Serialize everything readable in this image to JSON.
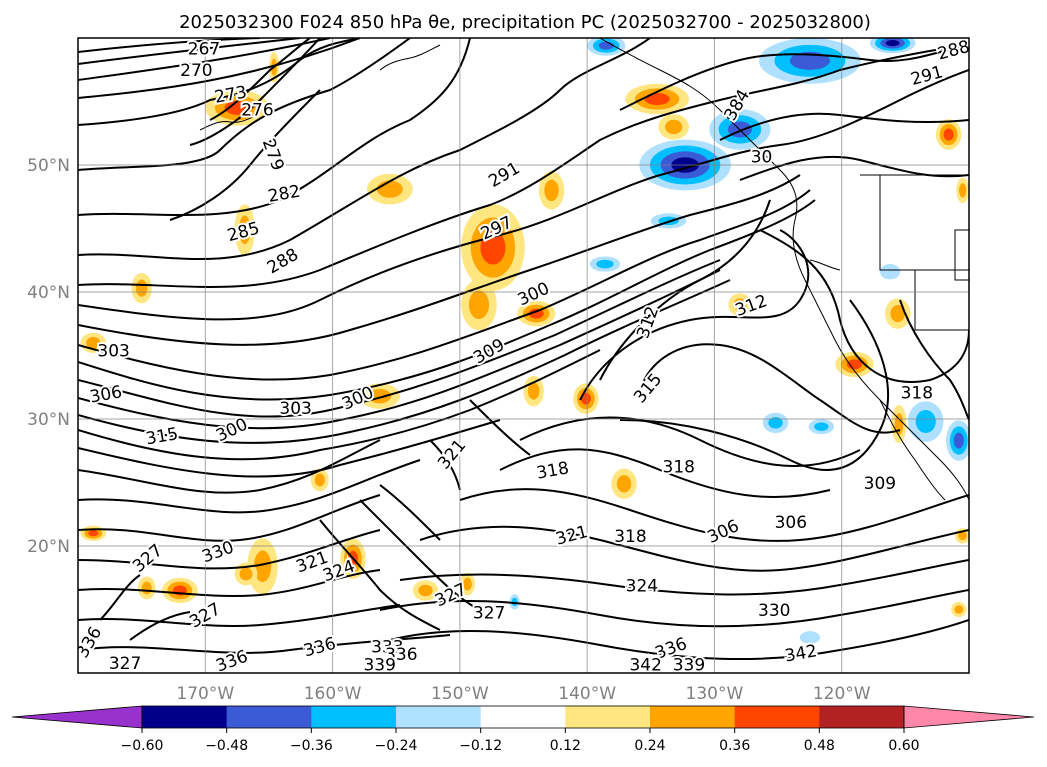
{
  "title": "2025032300 F024 850 hPa θe, precipitation PC (2025032700 - 2025032800)",
  "chart_data": {
    "type": "contour-map",
    "title": "2025032300 F024 850 hPa θe, precipitation PC (2025032700 - 2025032800)",
    "projection": "plate-carree",
    "lon_range": [
      -180,
      -110
    ],
    "lat_range": [
      10,
      60
    ],
    "gridlines": true,
    "lat_ticks": [
      {
        "value": 20,
        "label": "20°N"
      },
      {
        "value": 30,
        "label": "30°N"
      },
      {
        "value": 40,
        "label": "40°N"
      },
      {
        "value": 50,
        "label": "50°N"
      }
    ],
    "lon_ticks": [
      {
        "value": -170,
        "label": "170°W"
      },
      {
        "value": -160,
        "label": "160°W"
      },
      {
        "value": -150,
        "label": "150°W"
      },
      {
        "value": -140,
        "label": "140°W"
      },
      {
        "value": -130,
        "label": "130°W"
      },
      {
        "value": -120,
        "label": "120°W"
      }
    ],
    "contour_labels": [
      {
        "text": "267",
        "lon": -170.1,
        "lat": 59.1,
        "rot": 0
      },
      {
        "text": "270",
        "lon": -170.7,
        "lat": 57.4,
        "rot": 0
      },
      {
        "text": "273",
        "lon": -168.0,
        "lat": 55.5,
        "rot": -10
      },
      {
        "text": "276",
        "lon": -165.9,
        "lat": 54.3,
        "rot": 0
      },
      {
        "text": "279",
        "lon": -164.7,
        "lat": 50.8,
        "rot": 70
      },
      {
        "text": "282",
        "lon": -163.8,
        "lat": 47.7,
        "rot": -10
      },
      {
        "text": "285",
        "lon": -167.0,
        "lat": 44.7,
        "rot": -15
      },
      {
        "text": "288",
        "lon": -163.9,
        "lat": 42.4,
        "rot": -30
      },
      {
        "text": "291",
        "lon": -146.5,
        "lat": 49.2,
        "rot": -30
      },
      {
        "text": "297",
        "lon": -147.1,
        "lat": 45.0,
        "rot": -25
      },
      {
        "text": "300",
        "lon": -144.2,
        "lat": 39.8,
        "rot": -25
      },
      {
        "text": "309",
        "lon": -147.7,
        "lat": 35.3,
        "rot": -30
      },
      {
        "text": "312",
        "lon": -135.2,
        "lat": 37.6,
        "rot": -70
      },
      {
        "text": "315",
        "lon": -135.2,
        "lat": 32.4,
        "rot": -50
      },
      {
        "text": "312",
        "lon": -127.1,
        "lat": 38.9,
        "rot": -20
      },
      {
        "text": "288",
        "lon": -111.2,
        "lat": 59.0,
        "rot": -15
      },
      {
        "text": "291",
        "lon": -113.3,
        "lat": 57.0,
        "rot": -15
      },
      {
        "text": "303",
        "lon": -177.2,
        "lat": 35.3,
        "rot": 0
      },
      {
        "text": "306",
        "lon": -177.8,
        "lat": 31.9,
        "rot": -10
      },
      {
        "text": "303",
        "lon": -162.9,
        "lat": 30.8,
        "rot": 0
      },
      {
        "text": "300",
        "lon": -158.0,
        "lat": 31.6,
        "rot": -25
      },
      {
        "text": "300",
        "lon": -167.9,
        "lat": 29.1,
        "rot": -25
      },
      {
        "text": "315",
        "lon": -173.4,
        "lat": 28.6,
        "rot": -10
      },
      {
        "text": "321",
        "lon": -150.6,
        "lat": 27.2,
        "rot": -50
      },
      {
        "text": "318",
        "lon": -142.7,
        "lat": 25.9,
        "rot": -10
      },
      {
        "text": "309",
        "lon": -117.0,
        "lat": 24.9,
        "rot": 0
      },
      {
        "text": "318",
        "lon": -114.1,
        "lat": 32.0,
        "rot": 0
      },
      {
        "text": "306",
        "lon": -124.0,
        "lat": 21.8,
        "rot": 0
      },
      {
        "text": "306",
        "lon": -129.3,
        "lat": 21.1,
        "rot": -25
      },
      {
        "text": "321",
        "lon": -141.2,
        "lat": 20.8,
        "rot": -15
      },
      {
        "text": "318",
        "lon": -136.6,
        "lat": 20.7,
        "rot": 0
      },
      {
        "text": "330",
        "lon": -169.0,
        "lat": 19.5,
        "rot": -20
      },
      {
        "text": "327",
        "lon": -174.5,
        "lat": 19.0,
        "rot": -40
      },
      {
        "text": "321",
        "lon": -161.6,
        "lat": 18.7,
        "rot": -20
      },
      {
        "text": "324",
        "lon": -159.5,
        "lat": 18.0,
        "rot": -20
      },
      {
        "text": "324",
        "lon": -135.7,
        "lat": 16.8,
        "rot": 0
      },
      {
        "text": "327",
        "lon": -150.7,
        "lat": 16.1,
        "rot": -25
      },
      {
        "text": "327",
        "lon": -147.7,
        "lat": 14.7,
        "rot": 0
      },
      {
        "text": "327",
        "lon": -170.0,
        "lat": 14.5,
        "rot": -30
      },
      {
        "text": "330",
        "lon": -125.3,
        "lat": 14.9,
        "rot": 0
      },
      {
        "text": "336",
        "lon": -179.1,
        "lat": 12.4,
        "rot": -60
      },
      {
        "text": "336",
        "lon": -161.0,
        "lat": 12.0,
        "rot": -15
      },
      {
        "text": "336",
        "lon": -167.9,
        "lat": 10.9,
        "rot": -20
      },
      {
        "text": "333",
        "lon": -155.7,
        "lat": 12.0,
        "rot": 0
      },
      {
        "text": "336",
        "lon": -154.6,
        "lat": 11.4,
        "rot": 0
      },
      {
        "text": "339",
        "lon": -156.3,
        "lat": 10.6,
        "rot": 0
      },
      {
        "text": "327",
        "lon": -176.3,
        "lat": 10.7,
        "rot": 0
      },
      {
        "text": "336",
        "lon": -133.4,
        "lat": 11.9,
        "rot": -20
      },
      {
        "text": "342",
        "lon": -135.4,
        "lat": 10.6,
        "rot": 0
      },
      {
        "text": "339",
        "lon": -132.0,
        "lat": 10.6,
        "rot": 0
      },
      {
        "text": "342",
        "lon": -123.2,
        "lat": 11.5,
        "rot": -10
      },
      {
        "text": "30",
        "lon": -126.3,
        "lat": 50.6,
        "rot": 0
      },
      {
        "text": "384",
        "lon": -128.2,
        "lat": 54.7,
        "rot": -60
      },
      {
        "text": "318",
        "lon": -132.8,
        "lat": 26.2,
        "rot": 0
      }
    ],
    "precip_pc_blobs": [
      {
        "lon": -167.5,
        "lat": 54.5,
        "rx": 2.5,
        "ry": 1.4,
        "level": 0.36
      },
      {
        "lon": -134.5,
        "lat": 55.2,
        "rx": 2.5,
        "ry": 1.2,
        "level": 0.36
      },
      {
        "lon": -147.4,
        "lat": 43.5,
        "rx": 2.5,
        "ry": 3.4,
        "level": 0.36
      },
      {
        "lon": -144.0,
        "lat": 38.3,
        "rx": 1.5,
        "ry": 1.0,
        "level": 0.36
      },
      {
        "lon": -142.8,
        "lat": 48.0,
        "rx": 1.0,
        "ry": 1.5,
        "level": 0.24
      },
      {
        "lon": -155.5,
        "lat": 48.1,
        "rx": 1.8,
        "ry": 1.2,
        "level": 0.24
      },
      {
        "lon": -148.5,
        "lat": 39.0,
        "rx": 1.4,
        "ry": 2.0,
        "level": 0.24
      },
      {
        "lon": -140.1,
        "lat": 31.6,
        "rx": 1.0,
        "ry": 1.2,
        "level": 0.36
      },
      {
        "lon": -144.2,
        "lat": 32.2,
        "rx": 0.8,
        "ry": 1.2,
        "level": 0.24
      },
      {
        "lon": -156.3,
        "lat": 31.8,
        "rx": 1.6,
        "ry": 1.0,
        "level": 0.24
      },
      {
        "lon": -175.0,
        "lat": 40.3,
        "rx": 0.8,
        "ry": 1.2,
        "level": 0.24
      },
      {
        "lon": -166.9,
        "lat": 44.9,
        "rx": 0.8,
        "ry": 2.0,
        "level": 0.24
      },
      {
        "lon": -115.6,
        "lat": 38.3,
        "rx": 1.0,
        "ry": 1.2,
        "level": 0.24
      },
      {
        "lon": -119.0,
        "lat": 34.3,
        "rx": 1.5,
        "ry": 1.0,
        "level": 0.36
      },
      {
        "lon": -115.5,
        "lat": 29.6,
        "rx": 0.6,
        "ry": 1.5,
        "level": 0.24
      },
      {
        "lon": -161.0,
        "lat": 25.2,
        "rx": 0.7,
        "ry": 0.9,
        "level": 0.24
      },
      {
        "lon": -165.5,
        "lat": 18.4,
        "rx": 1.2,
        "ry": 2.2,
        "level": 0.24
      },
      {
        "lon": -158.4,
        "lat": 19.0,
        "rx": 1.0,
        "ry": 1.6,
        "level": 0.36
      },
      {
        "lon": -172.0,
        "lat": 16.5,
        "rx": 1.4,
        "ry": 1.0,
        "level": 0.36
      },
      {
        "lon": -174.6,
        "lat": 16.7,
        "rx": 0.7,
        "ry": 0.9,
        "level": 0.24
      },
      {
        "lon": -166.8,
        "lat": 17.8,
        "rx": 0.9,
        "ry": 0.9,
        "level": 0.24
      },
      {
        "lon": -128.0,
        "lat": 39.0,
        "rx": 0.9,
        "ry": 0.9,
        "level": 0.24
      },
      {
        "lon": -152.7,
        "lat": 16.5,
        "rx": 1.0,
        "ry": 0.8,
        "level": 0.24
      },
      {
        "lon": -164.6,
        "lat": 57.7,
        "rx": 0.4,
        "ry": 1.2,
        "level": 0.24
      },
      {
        "lon": -111.6,
        "lat": 52.4,
        "rx": 1.0,
        "ry": 1.2,
        "level": 0.36
      },
      {
        "lon": -178.8,
        "lat": 36.0,
        "rx": 1.0,
        "ry": 0.8,
        "level": 0.24
      },
      {
        "lon": -178.8,
        "lat": 21.0,
        "rx": 1.0,
        "ry": 0.6,
        "level": 0.36
      },
      {
        "lon": -110.5,
        "lat": 20.8,
        "rx": 0.6,
        "ry": 0.6,
        "level": 0.24
      },
      {
        "lon": -110.8,
        "lat": 15.0,
        "rx": 0.6,
        "ry": 0.6,
        "level": 0.24
      },
      {
        "lon": -137.1,
        "lat": 24.9,
        "rx": 1.0,
        "ry": 1.2,
        "level": 0.24
      },
      {
        "lon": -110.5,
        "lat": 48.0,
        "rx": 0.5,
        "ry": 1.0,
        "level": 0.24
      },
      {
        "lon": -133.2,
        "lat": 53.0,
        "rx": 1.2,
        "ry": 1.0,
        "level": 0.24
      },
      {
        "lon": -149.4,
        "lat": 17.0,
        "rx": 0.6,
        "ry": 0.9,
        "level": 0.24
      }
    ],
    "precip_nc_blobs": [
      {
        "lon": -132.3,
        "lat": 50.0,
        "rx": 3.6,
        "ry": 2.0,
        "level": -0.48
      },
      {
        "lon": -128.0,
        "lat": 52.8,
        "rx": 2.4,
        "ry": 1.6,
        "level": -0.36
      },
      {
        "lon": -122.5,
        "lat": 58.2,
        "rx": 4.0,
        "ry": 1.8,
        "level": -0.36
      },
      {
        "lon": -116.0,
        "lat": 59.6,
        "rx": 1.8,
        "ry": 0.8,
        "level": -0.48
      },
      {
        "lon": -138.5,
        "lat": 59.4,
        "rx": 1.5,
        "ry": 0.8,
        "level": -0.36
      },
      {
        "lon": -113.4,
        "lat": 29.8,
        "rx": 1.4,
        "ry": 1.6,
        "level": -0.24
      },
      {
        "lon": -110.8,
        "lat": 28.3,
        "rx": 1.0,
        "ry": 1.6,
        "level": -0.36
      },
      {
        "lon": -125.2,
        "lat": 29.7,
        "rx": 1.0,
        "ry": 0.8,
        "level": -0.24
      },
      {
        "lon": -121.6,
        "lat": 29.4,
        "rx": 1.0,
        "ry": 0.6,
        "level": -0.24
      },
      {
        "lon": -138.6,
        "lat": 42.2,
        "rx": 1.2,
        "ry": 0.6,
        "level": -0.24
      },
      {
        "lon": -133.6,
        "lat": 45.6,
        "rx": 1.4,
        "ry": 0.6,
        "level": -0.24
      },
      {
        "lon": -116.2,
        "lat": 41.6,
        "rx": 0.8,
        "ry": 0.6,
        "level": -0.12
      },
      {
        "lon": -145.7,
        "lat": 15.6,
        "rx": 0.4,
        "ry": 0.6,
        "level": -0.24
      },
      {
        "lon": -122.5,
        "lat": 12.8,
        "rx": 0.8,
        "ry": 0.5,
        "level": -0.12
      }
    ],
    "colorbar": {
      "ticks": [
        "−0.60",
        "−0.48",
        "−0.36",
        "−0.24",
        "−0.12",
        "0.12",
        "0.24",
        "0.36",
        "0.48",
        "0.60"
      ],
      "colors": [
        "#9932cc",
        "#00008b",
        "#3b5bd6",
        "#00bfff",
        "#b0e0ff",
        "#ffffff",
        "#ffe680",
        "#ffa500",
        "#ff4500",
        "#b22222",
        "#ff88aa"
      ],
      "extend": "both"
    }
  }
}
